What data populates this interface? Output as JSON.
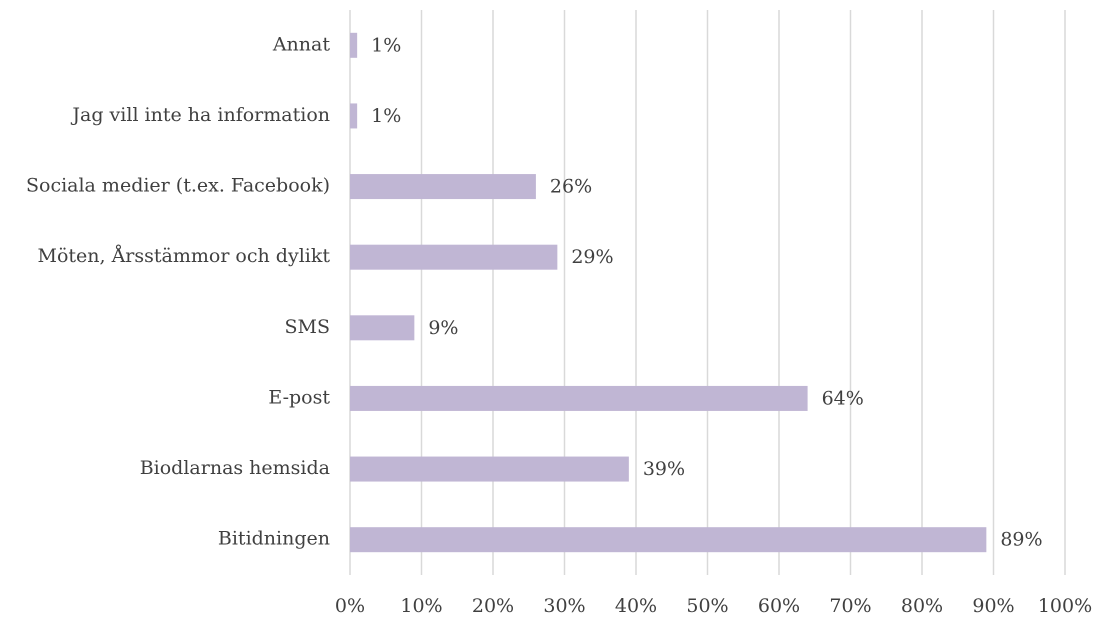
{
  "chart_data": {
    "type": "bar",
    "orientation": "horizontal",
    "categories": [
      "Annat",
      "Jag vill inte ha information",
      "Sociala medier (t.ex. Facebook)",
      "Möten, Årsstämmor och dylikt",
      "SMS",
      "E-post",
      "Biodlarnas hemsida",
      "Bitidningen"
    ],
    "values": [
      1,
      1,
      26,
      29,
      9,
      64,
      39,
      89
    ],
    "value_labels": [
      "1%",
      "1%",
      "26%",
      "29%",
      "9%",
      "64%",
      "39%",
      "89%"
    ],
    "color": "#c0b6d4",
    "xlim": [
      0,
      100
    ],
    "xticks": [
      {
        "value": 0,
        "label": "0%"
      },
      {
        "value": 10,
        "label": "10%"
      },
      {
        "value": 20,
        "label": "20%"
      },
      {
        "value": 30,
        "label": "30%"
      },
      {
        "value": 40,
        "label": "40%"
      },
      {
        "value": 50,
        "label": "50%"
      },
      {
        "value": 60,
        "label": "60%"
      },
      {
        "value": 70,
        "label": "70%"
      },
      {
        "value": 80,
        "label": "80%"
      },
      {
        "value": 90,
        "label": "90%"
      },
      {
        "value": 100,
        "label": "100%"
      }
    ],
    "grid": true
  }
}
